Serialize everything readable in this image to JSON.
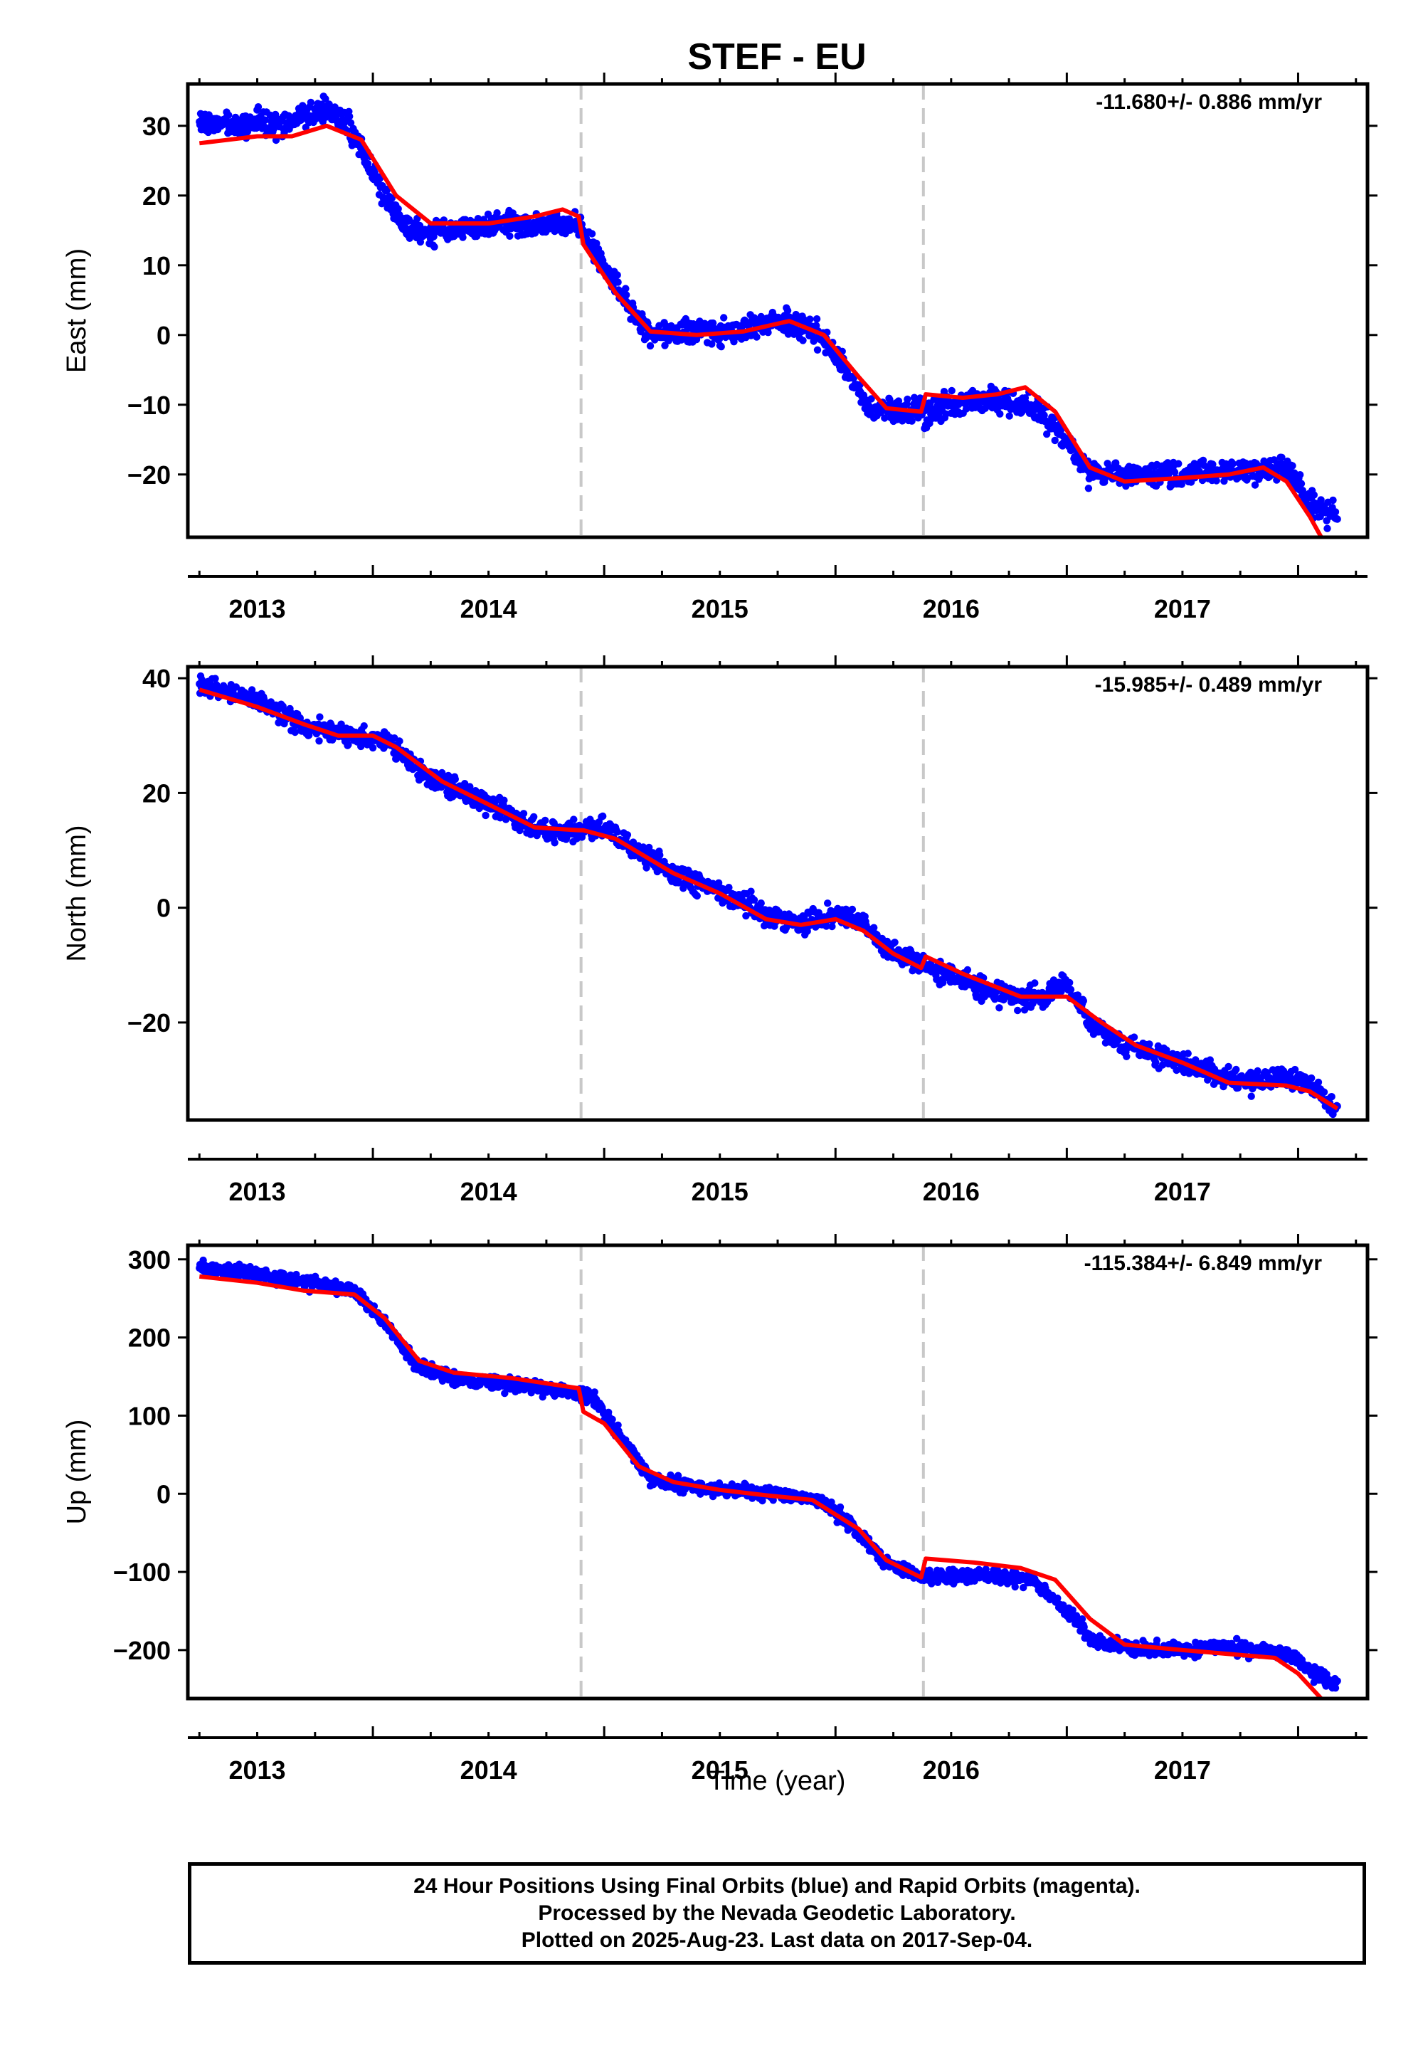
{
  "chart_data": {
    "type": "scatter",
    "title": "STEF - EU",
    "xlabel": "Time (year)",
    "xlim": [
      2012.7,
      2017.8
    ],
    "x_ticks": [
      2013,
      2014,
      2015,
      2016,
      2017
    ],
    "x_tick_labels": [
      "2013",
      "2014",
      "2015",
      "2016",
      "2017"
    ],
    "offset_lines_year": [
      2014.4,
      2015.88
    ],
    "colors": {
      "data": "#0000ff",
      "model": "#ff0000",
      "offset": "#c8c8c8",
      "axis": "#000000"
    },
    "panels": [
      {
        "id": "east",
        "ylabel": "East (mm)",
        "rate_label": "-11.680+/- 0.886 mm/yr",
        "ylim": [
          -29,
          36
        ],
        "y_ticks": [
          30,
          20,
          10,
          0,
          -10,
          -20
        ],
        "y_tick_labels": [
          "30",
          "20",
          "10",
          "0",
          "−10",
          "−20"
        ],
        "noise": 1.2,
        "observed_knots": [
          [
            2012.75,
            30.5
          ],
          [
            2012.9,
            30
          ],
          [
            2013.1,
            30
          ],
          [
            2013.3,
            32.5
          ],
          [
            2013.4,
            30
          ],
          [
            2013.55,
            20
          ],
          [
            2013.65,
            15
          ],
          [
            2013.8,
            15
          ],
          [
            2014.0,
            16
          ],
          [
            2014.2,
            15.5
          ],
          [
            2014.38,
            16
          ],
          [
            2014.45,
            13
          ],
          [
            2014.55,
            7
          ],
          [
            2014.7,
            0
          ],
          [
            2014.9,
            0.5
          ],
          [
            2015.05,
            0.5
          ],
          [
            2015.25,
            2
          ],
          [
            2015.4,
            1
          ],
          [
            2015.55,
            -5
          ],
          [
            2015.65,
            -11
          ],
          [
            2015.88,
            -11
          ],
          [
            2016.0,
            -10
          ],
          [
            2016.2,
            -9
          ],
          [
            2016.35,
            -10
          ],
          [
            2016.5,
            -15
          ],
          [
            2016.6,
            -20
          ],
          [
            2016.75,
            -20
          ],
          [
            2017.0,
            -20
          ],
          [
            2017.2,
            -19.5
          ],
          [
            2017.45,
            -19
          ],
          [
            2017.55,
            -24
          ],
          [
            2017.67,
            -26
          ]
        ],
        "model_knots": [
          [
            2012.75,
            27.5
          ],
          [
            2013.0,
            28.5
          ],
          [
            2013.15,
            28.5
          ],
          [
            2013.3,
            30
          ],
          [
            2013.45,
            28
          ],
          [
            2013.6,
            20
          ],
          [
            2013.75,
            16
          ],
          [
            2014.0,
            16
          ],
          [
            2014.2,
            17
          ],
          [
            2014.32,
            18
          ],
          [
            2014.39,
            17
          ],
          [
            2014.41,
            13
          ],
          [
            2014.55,
            6
          ],
          [
            2014.7,
            0.5
          ],
          [
            2014.9,
            0
          ],
          [
            2015.1,
            0.5
          ],
          [
            2015.3,
            2
          ],
          [
            2015.45,
            0
          ],
          [
            2015.6,
            -6
          ],
          [
            2015.72,
            -10.5
          ],
          [
            2015.87,
            -11
          ],
          [
            2015.89,
            -8.5
          ],
          [
            2016.05,
            -9
          ],
          [
            2016.2,
            -8.5
          ],
          [
            2016.32,
            -7.5
          ],
          [
            2016.45,
            -11
          ],
          [
            2016.6,
            -19
          ],
          [
            2016.75,
            -21
          ],
          [
            2017.0,
            -20.5
          ],
          [
            2017.2,
            -20
          ],
          [
            2017.35,
            -19
          ],
          [
            2017.45,
            -21
          ],
          [
            2017.55,
            -26
          ],
          [
            2017.6,
            -29
          ]
        ]
      },
      {
        "id": "north",
        "ylabel": "North (mm)",
        "rate_label": "-15.985+/- 0.489 mm/yr",
        "ylim": [
          -37,
          42
        ],
        "y_ticks": [
          40,
          20,
          0,
          -20
        ],
        "y_tick_labels": [
          "40",
          "20",
          "0",
          "−20"
        ],
        "noise": 1.3,
        "observed_knots": [
          [
            2012.75,
            39
          ],
          [
            2013.0,
            36
          ],
          [
            2013.2,
            32
          ],
          [
            2013.4,
            30
          ],
          [
            2013.55,
            29.5
          ],
          [
            2013.7,
            24
          ],
          [
            2013.9,
            20
          ],
          [
            2014.1,
            16
          ],
          [
            2014.25,
            13
          ],
          [
            2014.4,
            13.5
          ],
          [
            2014.5,
            14
          ],
          [
            2014.6,
            11
          ],
          [
            2014.8,
            6
          ],
          [
            2015.0,
            3
          ],
          [
            2015.2,
            -1
          ],
          [
            2015.35,
            -3
          ],
          [
            2015.5,
            -1
          ],
          [
            2015.6,
            -2
          ],
          [
            2015.72,
            -7
          ],
          [
            2015.88,
            -10
          ],
          [
            2016.0,
            -12
          ],
          [
            2016.2,
            -15
          ],
          [
            2016.4,
            -16
          ],
          [
            2016.5,
            -13
          ],
          [
            2016.6,
            -20
          ],
          [
            2016.75,
            -24
          ],
          [
            2017.0,
            -27
          ],
          [
            2017.2,
            -30
          ],
          [
            2017.45,
            -30
          ],
          [
            2017.55,
            -31
          ],
          [
            2017.67,
            -35
          ]
        ],
        "model_knots": [
          [
            2012.75,
            38
          ],
          [
            2013.0,
            35
          ],
          [
            2013.2,
            32
          ],
          [
            2013.35,
            30
          ],
          [
            2013.5,
            30
          ],
          [
            2013.6,
            28
          ],
          [
            2013.8,
            22
          ],
          [
            2014.0,
            18
          ],
          [
            2014.2,
            14
          ],
          [
            2014.39,
            13.5
          ],
          [
            2014.41,
            13.5
          ],
          [
            2014.55,
            12
          ],
          [
            2014.8,
            6
          ],
          [
            2015.0,
            2.5
          ],
          [
            2015.2,
            -2
          ],
          [
            2015.35,
            -3
          ],
          [
            2015.5,
            -2
          ],
          [
            2015.62,
            -4
          ],
          [
            2015.75,
            -8
          ],
          [
            2015.87,
            -10.5
          ],
          [
            2015.89,
            -8.5
          ],
          [
            2016.05,
            -11.5
          ],
          [
            2016.3,
            -15.5
          ],
          [
            2016.5,
            -15.5
          ],
          [
            2016.65,
            -20
          ],
          [
            2016.8,
            -24
          ],
          [
            2017.0,
            -27
          ],
          [
            2017.2,
            -30.5
          ],
          [
            2017.45,
            -31
          ],
          [
            2017.55,
            -32
          ],
          [
            2017.67,
            -35
          ]
        ]
      },
      {
        "id": "up",
        "ylabel": "Up (mm)",
        "rate_label": "-115.384+/- 6.849 mm/yr",
        "ylim": [
          -262,
          318
        ],
        "y_ticks": [
          300,
          200,
          100,
          0,
          -100,
          -200
        ],
        "y_tick_labels": [
          "300",
          "200",
          "100",
          "0",
          "−100",
          "−200"
        ],
        "noise": 6,
        "observed_knots": [
          [
            2012.75,
            290
          ],
          [
            2013.0,
            280
          ],
          [
            2013.2,
            272
          ],
          [
            2013.42,
            260
          ],
          [
            2013.55,
            220
          ],
          [
            2013.7,
            160
          ],
          [
            2013.9,
            145
          ],
          [
            2014.1,
            140
          ],
          [
            2014.35,
            130
          ],
          [
            2014.45,
            125
          ],
          [
            2014.55,
            80
          ],
          [
            2014.7,
            20
          ],
          [
            2014.9,
            8
          ],
          [
            2015.1,
            3
          ],
          [
            2015.3,
            -2
          ],
          [
            2015.45,
            -10
          ],
          [
            2015.6,
            -50
          ],
          [
            2015.72,
            -90
          ],
          [
            2015.88,
            -105
          ],
          [
            2016.0,
            -105
          ],
          [
            2016.2,
            -105
          ],
          [
            2016.35,
            -110
          ],
          [
            2016.5,
            -150
          ],
          [
            2016.6,
            -185
          ],
          [
            2016.75,
            -198
          ],
          [
            2017.0,
            -200
          ],
          [
            2017.2,
            -195
          ],
          [
            2017.45,
            -205
          ],
          [
            2017.55,
            -225
          ],
          [
            2017.67,
            -245
          ]
        ],
        "model_knots": [
          [
            2012.75,
            278
          ],
          [
            2013.0,
            270
          ],
          [
            2013.2,
            260
          ],
          [
            2013.42,
            255
          ],
          [
            2013.55,
            225
          ],
          [
            2013.7,
            170
          ],
          [
            2013.85,
            155
          ],
          [
            2014.1,
            148
          ],
          [
            2014.39,
            135
          ],
          [
            2014.41,
            105
          ],
          [
            2014.5,
            90
          ],
          [
            2014.65,
            35
          ],
          [
            2014.8,
            15
          ],
          [
            2015.0,
            5
          ],
          [
            2015.2,
            -2
          ],
          [
            2015.4,
            -8
          ],
          [
            2015.6,
            -45
          ],
          [
            2015.72,
            -85
          ],
          [
            2015.87,
            -107
          ],
          [
            2015.89,
            -83
          ],
          [
            2016.1,
            -88
          ],
          [
            2016.3,
            -95
          ],
          [
            2016.45,
            -110
          ],
          [
            2016.6,
            -160
          ],
          [
            2016.75,
            -193
          ],
          [
            2017.0,
            -200
          ],
          [
            2017.2,
            -205
          ],
          [
            2017.4,
            -210
          ],
          [
            2017.5,
            -230
          ],
          [
            2017.6,
            -262
          ]
        ]
      }
    ],
    "footer": {
      "line1": "24 Hour Positions Using Final Orbits (blue) and Rapid Orbits (magenta).",
      "line2": "Processed by the Nevada Geodetic Laboratory.",
      "line3": "Plotted on 2025-Aug-23. Last data on 2017-Sep-04."
    }
  }
}
